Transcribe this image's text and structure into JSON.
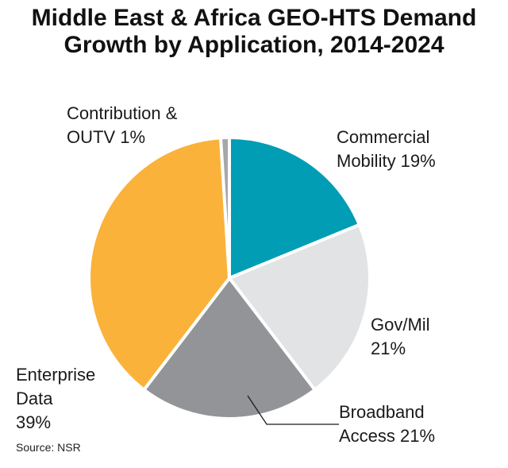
{
  "chart_data": {
    "type": "pie",
    "title_line1": "Middle East & Africa GEO-HTS Demand",
    "title_line2": "Growth by Application, 2014-2024",
    "slices": [
      {
        "name": "Commercial Mobility",
        "value": 19,
        "color": "#009db5",
        "label_lines": [
          "Commercial",
          "Mobility 19%"
        ]
      },
      {
        "name": "Gov/Mil",
        "value": 21,
        "color": "#e2e3e5",
        "label_lines": [
          "Gov/Mil",
          "21%"
        ]
      },
      {
        "name": "Broadband Access",
        "value": 21,
        "color": "#929497",
        "label_lines": [
          "Broadband",
          "Access 21%"
        ]
      },
      {
        "name": "Enterprise Data",
        "value": 39,
        "color": "#fbb23a",
        "label_lines": [
          "Enterprise",
          "Data",
          "39%"
        ]
      },
      {
        "name": "Contribution & OUTV",
        "value": 1,
        "color": "#a5a7aa",
        "label_lines": [
          "Contribution &",
          "OUTV 1%"
        ]
      }
    ],
    "source": "Source: NSR"
  }
}
